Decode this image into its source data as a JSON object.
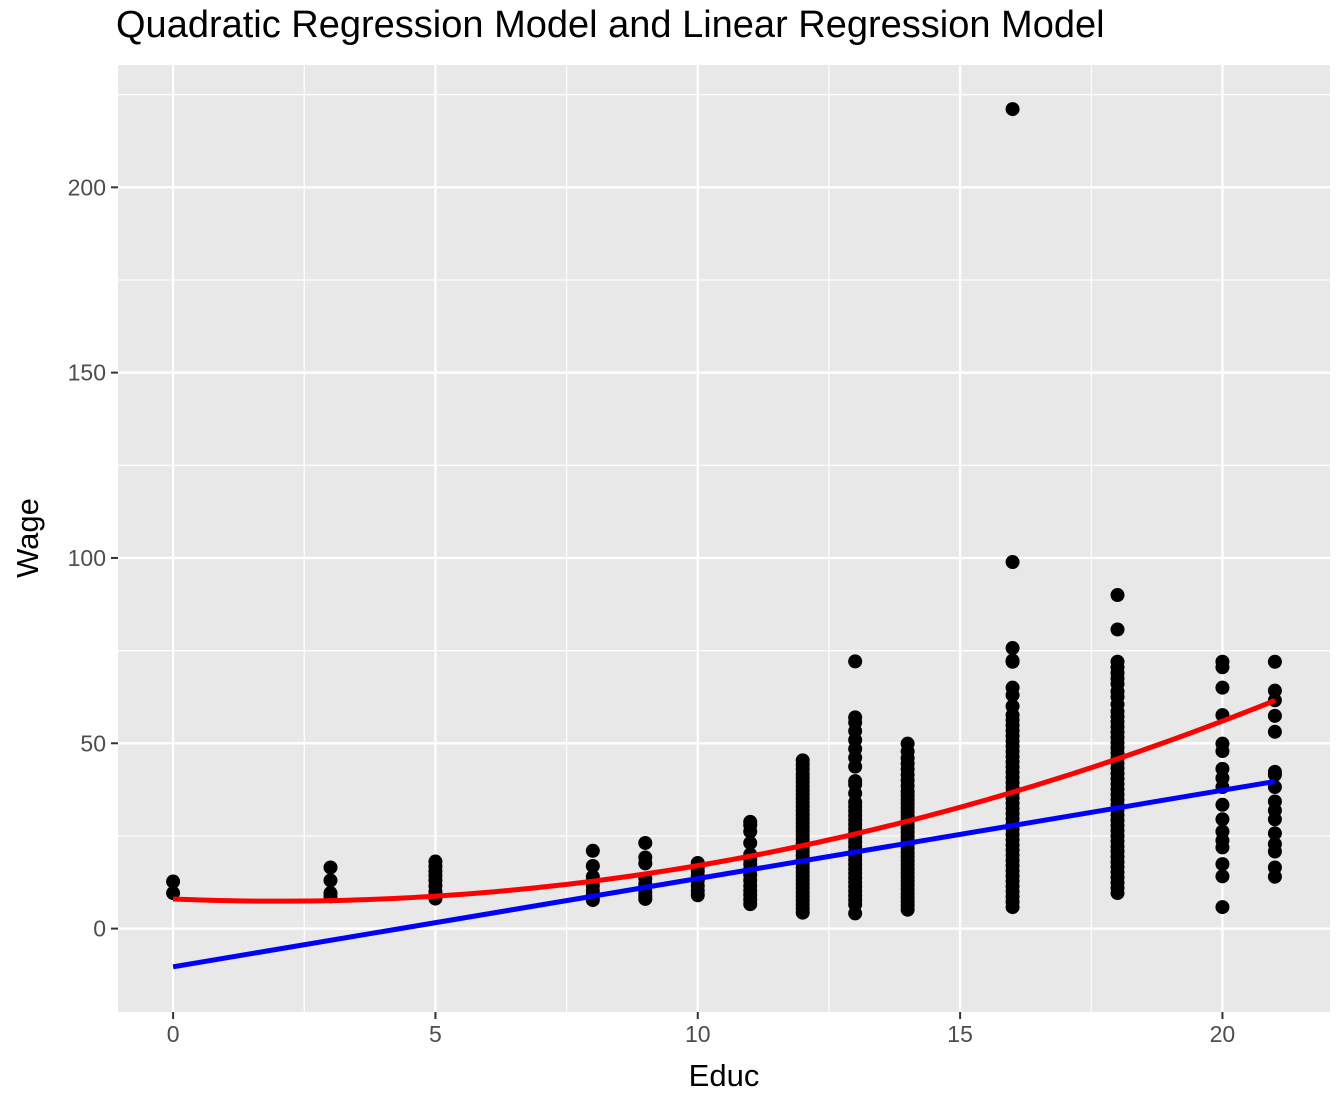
{
  "chart_data": {
    "type": "scatter",
    "title": "Quadratic Regression Model and Linear Regression Model",
    "xlabel": "Educ",
    "ylabel": "Wage",
    "xlim": [
      -1.05,
      22.05
    ],
    "ylim": [
      -22.5,
      233
    ],
    "x_ticks": [
      0,
      5,
      10,
      15,
      20
    ],
    "y_ticks": [
      0,
      50,
      100,
      150,
      200
    ],
    "grid": true,
    "background": "#e8e8e8",
    "points": [
      {
        "x": 0,
        "y": [
          9.6,
          12.7
        ]
      },
      {
        "x": 3,
        "y": [
          8.7,
          9.6,
          13,
          16.5
        ]
      },
      {
        "x": 5,
        "y": [
          8.1,
          9,
          10,
          11.5,
          13,
          14.3,
          15.5,
          16.8,
          18.1
        ]
      },
      {
        "x": 8,
        "y": [
          7.7,
          8.4,
          9.1,
          10.2,
          11.5,
          12.8,
          14,
          16.9,
          21
        ]
      },
      {
        "x": 9,
        "y": [
          8,
          8.8,
          9.8,
          11,
          12,
          13.5,
          17.6,
          19.2,
          23.1
        ]
      },
      {
        "x": 10,
        "y": [
          9,
          10.2,
          11.5,
          13,
          14.3,
          15.5,
          16.6,
          17.7
        ]
      },
      {
        "x": 11,
        "y": [
          6.6,
          7.8,
          9.1,
          10.2,
          11.5,
          13,
          14.5,
          16,
          17.4,
          18.6,
          20,
          23.1,
          26.2,
          27.9,
          28.8
        ]
      },
      {
        "x": 12,
        "y": [
          4.3,
          5.4,
          6.5,
          7.6,
          8.7,
          9.8,
          10.9,
          12,
          13.1,
          14.2,
          15.3,
          16.4,
          17.5,
          18.6,
          19.7,
          20.8,
          21.9,
          23,
          24.1,
          25.2,
          26.3,
          27.4,
          28.5,
          29.6,
          30.7,
          31.8,
          32.9,
          34,
          35.1,
          36.2,
          37.3,
          38.4,
          39.5,
          40.6,
          41.7,
          43,
          44.2,
          45.4
        ]
      },
      {
        "x": 13,
        "y": [
          4.1,
          6.5,
          7.7,
          8.9,
          10.1,
          11.3,
          12.5,
          13.7,
          14.9,
          16.1,
          17.3,
          18.5,
          19.7,
          20.9,
          22.1,
          23.3,
          24.5,
          25.7,
          26.9,
          28.1,
          29.3,
          30.5,
          31.7,
          32.9,
          34.1,
          36.5,
          38.9,
          39.8,
          43.7,
          46.1,
          48.5,
          50.9,
          53.3,
          55.6,
          57,
          72.1
        ]
      },
      {
        "x": 14,
        "y": [
          5.1,
          6.2,
          7.3,
          8.4,
          9.5,
          10.6,
          11.7,
          12.8,
          13.9,
          15,
          16.1,
          17.2,
          18.3,
          19.4,
          20.5,
          21.6,
          22.7,
          23.8,
          24.9,
          26,
          27.1,
          28.2,
          29.3,
          30.4,
          31.5,
          32.6,
          33.7,
          34.8,
          35.9,
          37,
          38.5,
          40,
          41.5,
          43,
          44.5,
          46,
          47.8,
          49.9
        ]
      },
      {
        "x": 16,
        "y": [
          5.8,
          7.2,
          8.6,
          10,
          11.4,
          12.8,
          14.2,
          15.6,
          17,
          18.4,
          19.8,
          21.2,
          22.6,
          24,
          25.4,
          26.8,
          28.2,
          29.6,
          31,
          32.4,
          33.8,
          35.2,
          36.6,
          38,
          39.4,
          40.8,
          42.2,
          43.6,
          45,
          46.4,
          47.8,
          49.2,
          50.6,
          52,
          53.4,
          54.8,
          56.2,
          57.6,
          60,
          63,
          65,
          72,
          72.3,
          75.7,
          98.9,
          221.1
        ]
      },
      {
        "x": 18,
        "y": [
          9.6,
          11,
          12.4,
          13.8,
          15.2,
          16.6,
          18,
          19.4,
          20.8,
          22.2,
          23.6,
          25,
          26.4,
          27.8,
          29.2,
          30.6,
          32,
          33.4,
          34.8,
          36.2,
          37.6,
          39,
          40.4,
          41.8,
          43.2,
          44.6,
          46,
          47.4,
          48.8,
          50.2,
          51.6,
          53,
          54.4,
          55.8,
          57.2,
          58.6,
          60.5,
          62.5,
          64,
          66,
          67.5,
          69,
          70.5,
          72,
          80.7,
          90
        ]
      },
      {
        "x": 20,
        "y": [
          5.8,
          14.1,
          17.4,
          21.9,
          23.8,
          26.2,
          29.5,
          33.4,
          38.2,
          40.6,
          43.1,
          47.9,
          49.9,
          57.6,
          65,
          70.5,
          72
        ]
      },
      {
        "x": 21,
        "y": [
          14,
          16.5,
          20.8,
          22.8,
          25.7,
          29.5,
          31.9,
          34.3,
          38.2,
          41.5,
          42.3,
          53.1,
          57.4,
          61.6,
          64.2,
          72
        ]
      }
    ],
    "lines": [
      {
        "model": "linear",
        "color": "#0000ff",
        "from": [
          0,
          -10.3
        ],
        "to": [
          21,
          39.7
        ]
      },
      {
        "model": "quadratic",
        "color": "#ff0000",
        "x_range": [
          0,
          21
        ],
        "coef": [
          8.0,
          -0.6,
          0.15
        ]
      }
    ]
  }
}
